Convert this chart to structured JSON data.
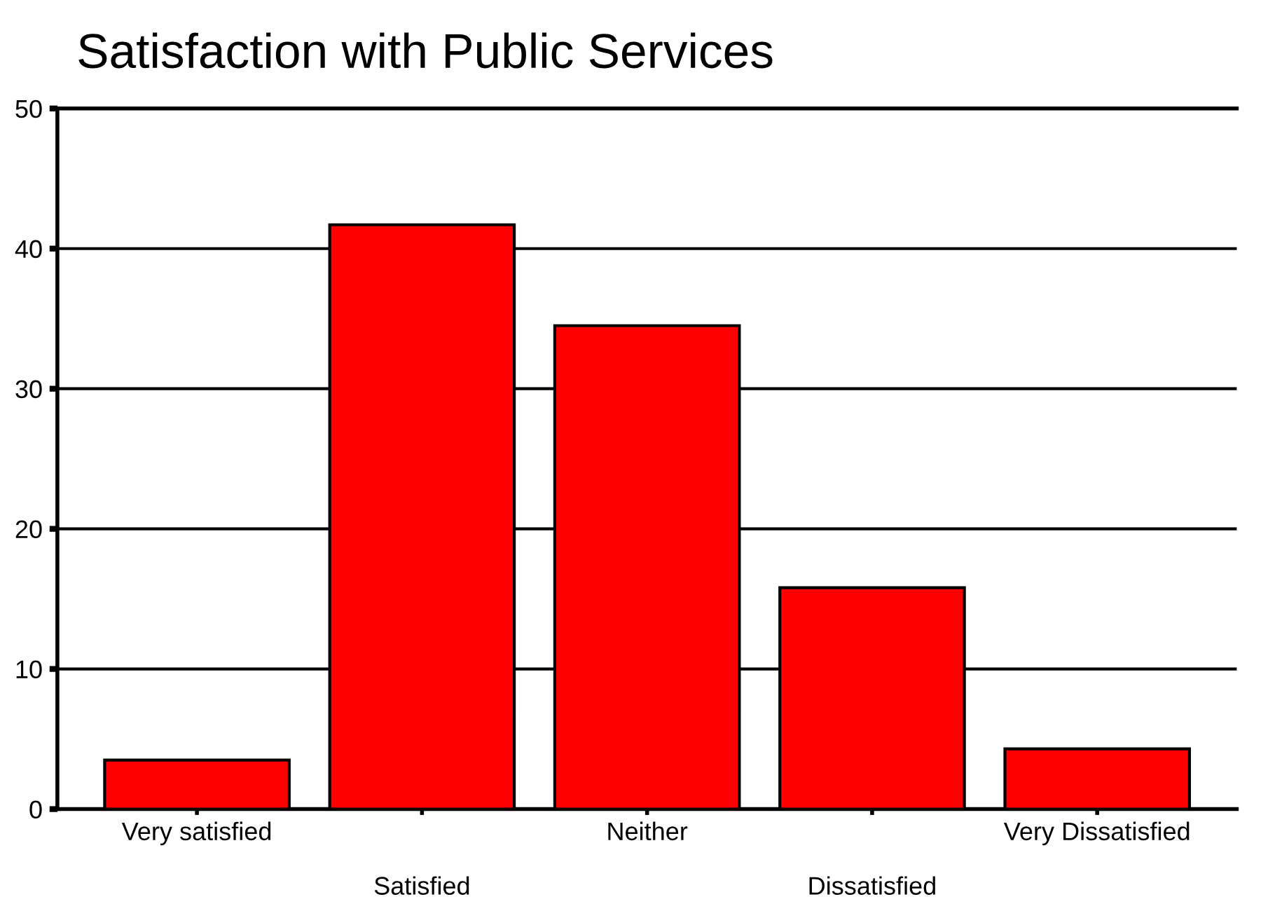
{
  "chart_data": {
    "type": "bar",
    "title": "Satisfaction with Public Services",
    "categories": [
      "Very satisfied",
      "Satisfied",
      "Neither",
      "Dissatisfied",
      "Very Dissatisfied"
    ],
    "values": [
      3.5,
      41.7,
      34.5,
      15.8,
      4.3
    ],
    "color": "#ff0000",
    "ylim": [
      0,
      50
    ],
    "yticks": [
      0,
      10,
      20,
      30,
      40,
      50
    ],
    "grid": "y",
    "legend": false
  }
}
